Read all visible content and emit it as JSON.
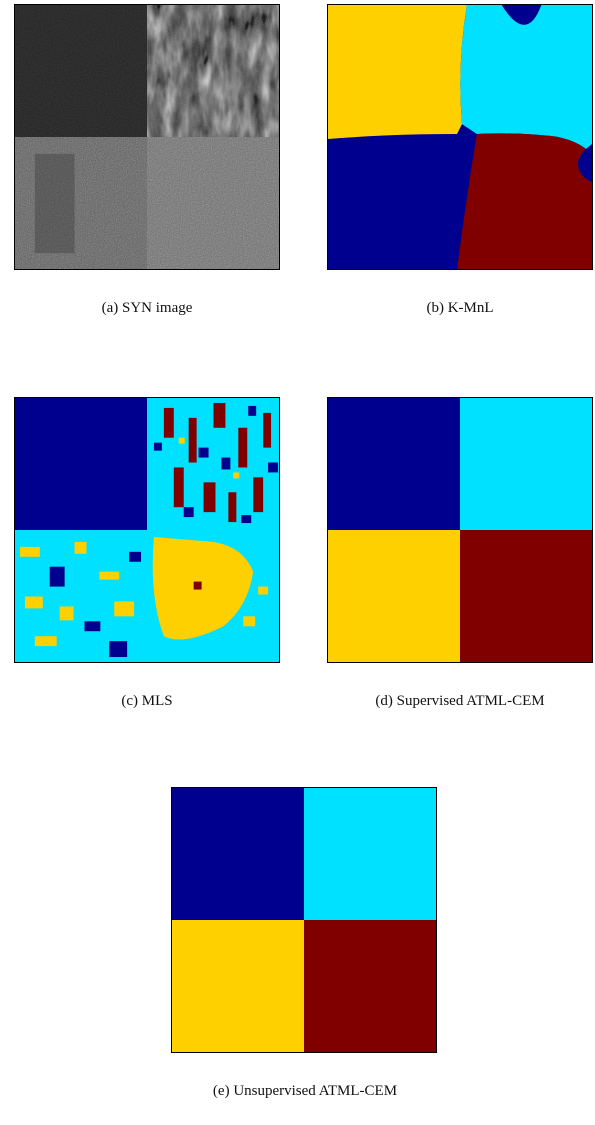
{
  "figure": {
    "captions": {
      "a": "(a)  SYN image",
      "b": "(b)  K-MnL",
      "c": "(c)  MLS",
      "d": "(d)  Supervised  ATML-CEM",
      "e": "(e)  Unsupervised  ATML-CEM"
    },
    "class_colors": {
      "navy": "#00008f",
      "cyan": "#00e0ff",
      "yellow": "#ffd000",
      "maroon": "#800000"
    }
  }
}
